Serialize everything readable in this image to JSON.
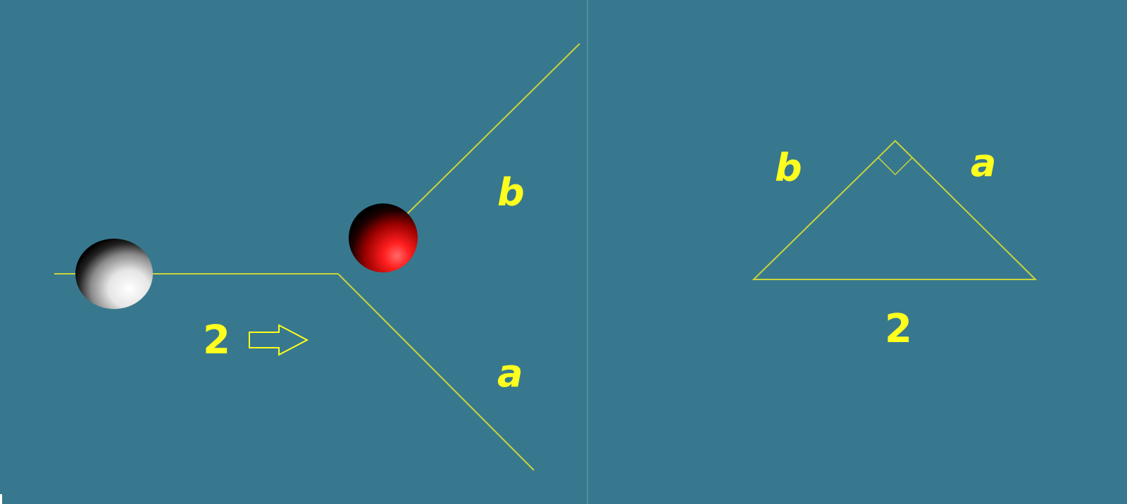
{
  "colors": {
    "background": "#38788e",
    "line": "#c9d43a",
    "label": "#ffff1e",
    "divider": "#5b93a6",
    "white_ball": "#ffffff",
    "red_ball": "#ff2020"
  },
  "left_panel": {
    "speed_label": "2",
    "upper_path_label": "b",
    "lower_path_label": "a",
    "arrow_icon": "right-arrow-outline-icon"
  },
  "right_panel": {
    "left_side_label": "b",
    "right_side_label": "a",
    "base_label": "2",
    "right_angle_icon": "right-angle-marker-icon"
  }
}
